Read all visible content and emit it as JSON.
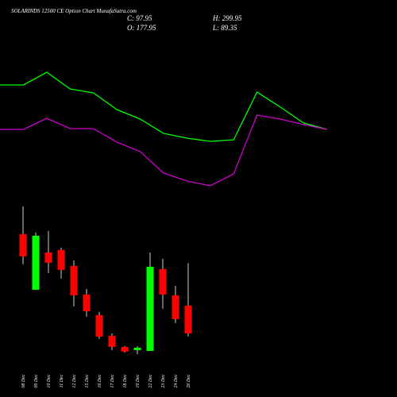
{
  "header": {
    "title": "SOLARINDS 12500  CE Option  Chart MunafaSutra.com",
    "close": "C: 97.95",
    "high": "H: 299.95",
    "open": "O: 177.95",
    "low": "L: 89.35"
  },
  "chart_data": [
    {
      "type": "line",
      "ylim": [
        0,
        100
      ],
      "series": [
        {
          "color": "#00ff00",
          "values": [
            76.5,
            76.5,
            84.5,
            74,
            71.5,
            61,
            55,
            46,
            43,
            41,
            42,
            72,
            62.5,
            52.5,
            48.5
          ]
        },
        {
          "color": "#cc00cc",
          "values": [
            48.5,
            48.5,
            55.5,
            49,
            49,
            40.5,
            34.5,
            21,
            16,
            13,
            20.5,
            57.5,
            55,
            51.5,
            48.5
          ]
        }
      ]
    },
    {
      "type": "candlestick",
      "ylim": [
        36,
        468
      ],
      "up_color": "#00ff00",
      "down_color": "#ff0000",
      "categories": [
        "08 Dec",
        "09 Dec",
        "10 Dec",
        "11 Dec",
        "12 Dec",
        "15 Dec",
        "16 Dec",
        "17 Dec",
        "18 Dec",
        "19 Dec",
        "22 Dec",
        "23 Dec",
        "24 Dec",
        "26 Dec"
      ],
      "open": [
        383.6,
        223.6,
        331.1,
        337.9,
        292.2,
        209.9,
        150.5,
        91.0,
        59.0,
        49.9,
        47.6,
        283.0,
        207.6,
        177.95
      ],
      "high": [
        463.6,
        388.2,
        392.8,
        344.8,
        308.2,
        225.9,
        159.6,
        97.9,
        61.3,
        61.3,
        331.0,
        312.8,
        235.0,
        299.95
      ],
      "low": [
        296.8,
        223.6,
        271.6,
        255.6,
        175.6,
        145.9,
        81.9,
        49.9,
        43.0,
        38.4,
        47.6,
        168.8,
        127.6,
        89.35
      ],
      "close": [
        319.6,
        379.1,
        301.3,
        280.8,
        207.6,
        161.9,
        88.7,
        59.0,
        45.3,
        56.7,
        289.9,
        209.9,
        139.0,
        97.95
      ]
    }
  ]
}
